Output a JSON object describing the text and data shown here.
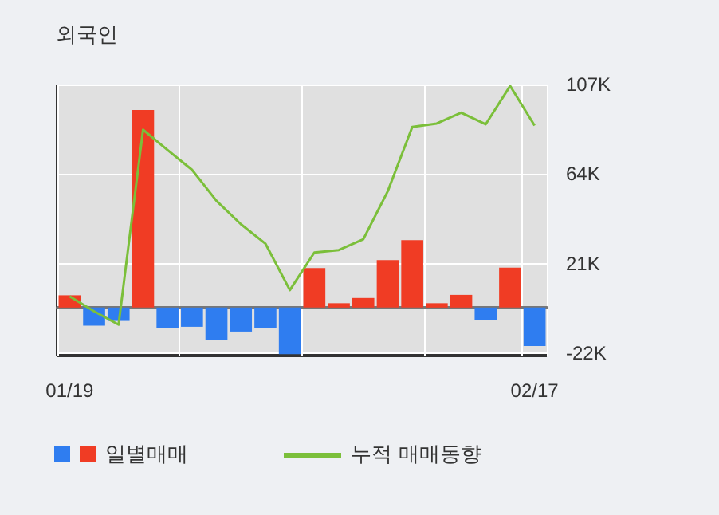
{
  "chart_data": {
    "type": "bar",
    "title": "외국인",
    "categories": [
      "01/19",
      null,
      null,
      null,
      null,
      null,
      null,
      null,
      null,
      null,
      null,
      null,
      null,
      null,
      null,
      null,
      null,
      null,
      null,
      "02/17"
    ],
    "series": [
      {
        "name": "일별매매",
        "colors": [
          "#f03c24",
          "#2f7df0",
          "#2f7df0",
          "#f03c24",
          "#2f7df0",
          "#2f7df0",
          "#2f7df0",
          "#2f7df0",
          "#2f7df0",
          "#2f7df0",
          "#f03c24",
          "#f03c24",
          "#f03c24",
          "#f03c24",
          "#f03c24",
          "#f03c24",
          "#f03c24",
          "#2f7df0",
          "#f03c24",
          "#2f7df0"
        ],
        "values": [
          5.9,
          -8.7,
          -6.4,
          94.8,
          -10,
          -9.2,
          -15.4,
          -11.5,
          -10,
          -22.3,
          19,
          2.1,
          4.6,
          22.8,
          32.3,
          2.1,
          6.1,
          -6.1,
          19.2,
          -18.4
        ]
      },
      {
        "name": "누적 매매동향",
        "type": "line",
        "color": "#7bbf3a",
        "values": [
          5.4,
          -1.8,
          -8.2,
          85.3,
          75.6,
          66.1,
          51.2,
          40,
          30.7,
          8.4,
          26.4,
          27.6,
          32.8,
          55.8,
          86.6,
          88.3,
          93.5,
          87.9,
          106.3,
          87.3
        ]
      }
    ],
    "ylim": [
      -23,
      107
    ],
    "yticks": [
      {
        "value": -22,
        "label": "-22K"
      },
      {
        "value": 21,
        "label": "21K"
      },
      {
        "value": 64,
        "label": "64K"
      },
      {
        "value": 107,
        "label": "107K"
      }
    ],
    "grid": true,
    "legend": "bottom",
    "marker": "none"
  }
}
